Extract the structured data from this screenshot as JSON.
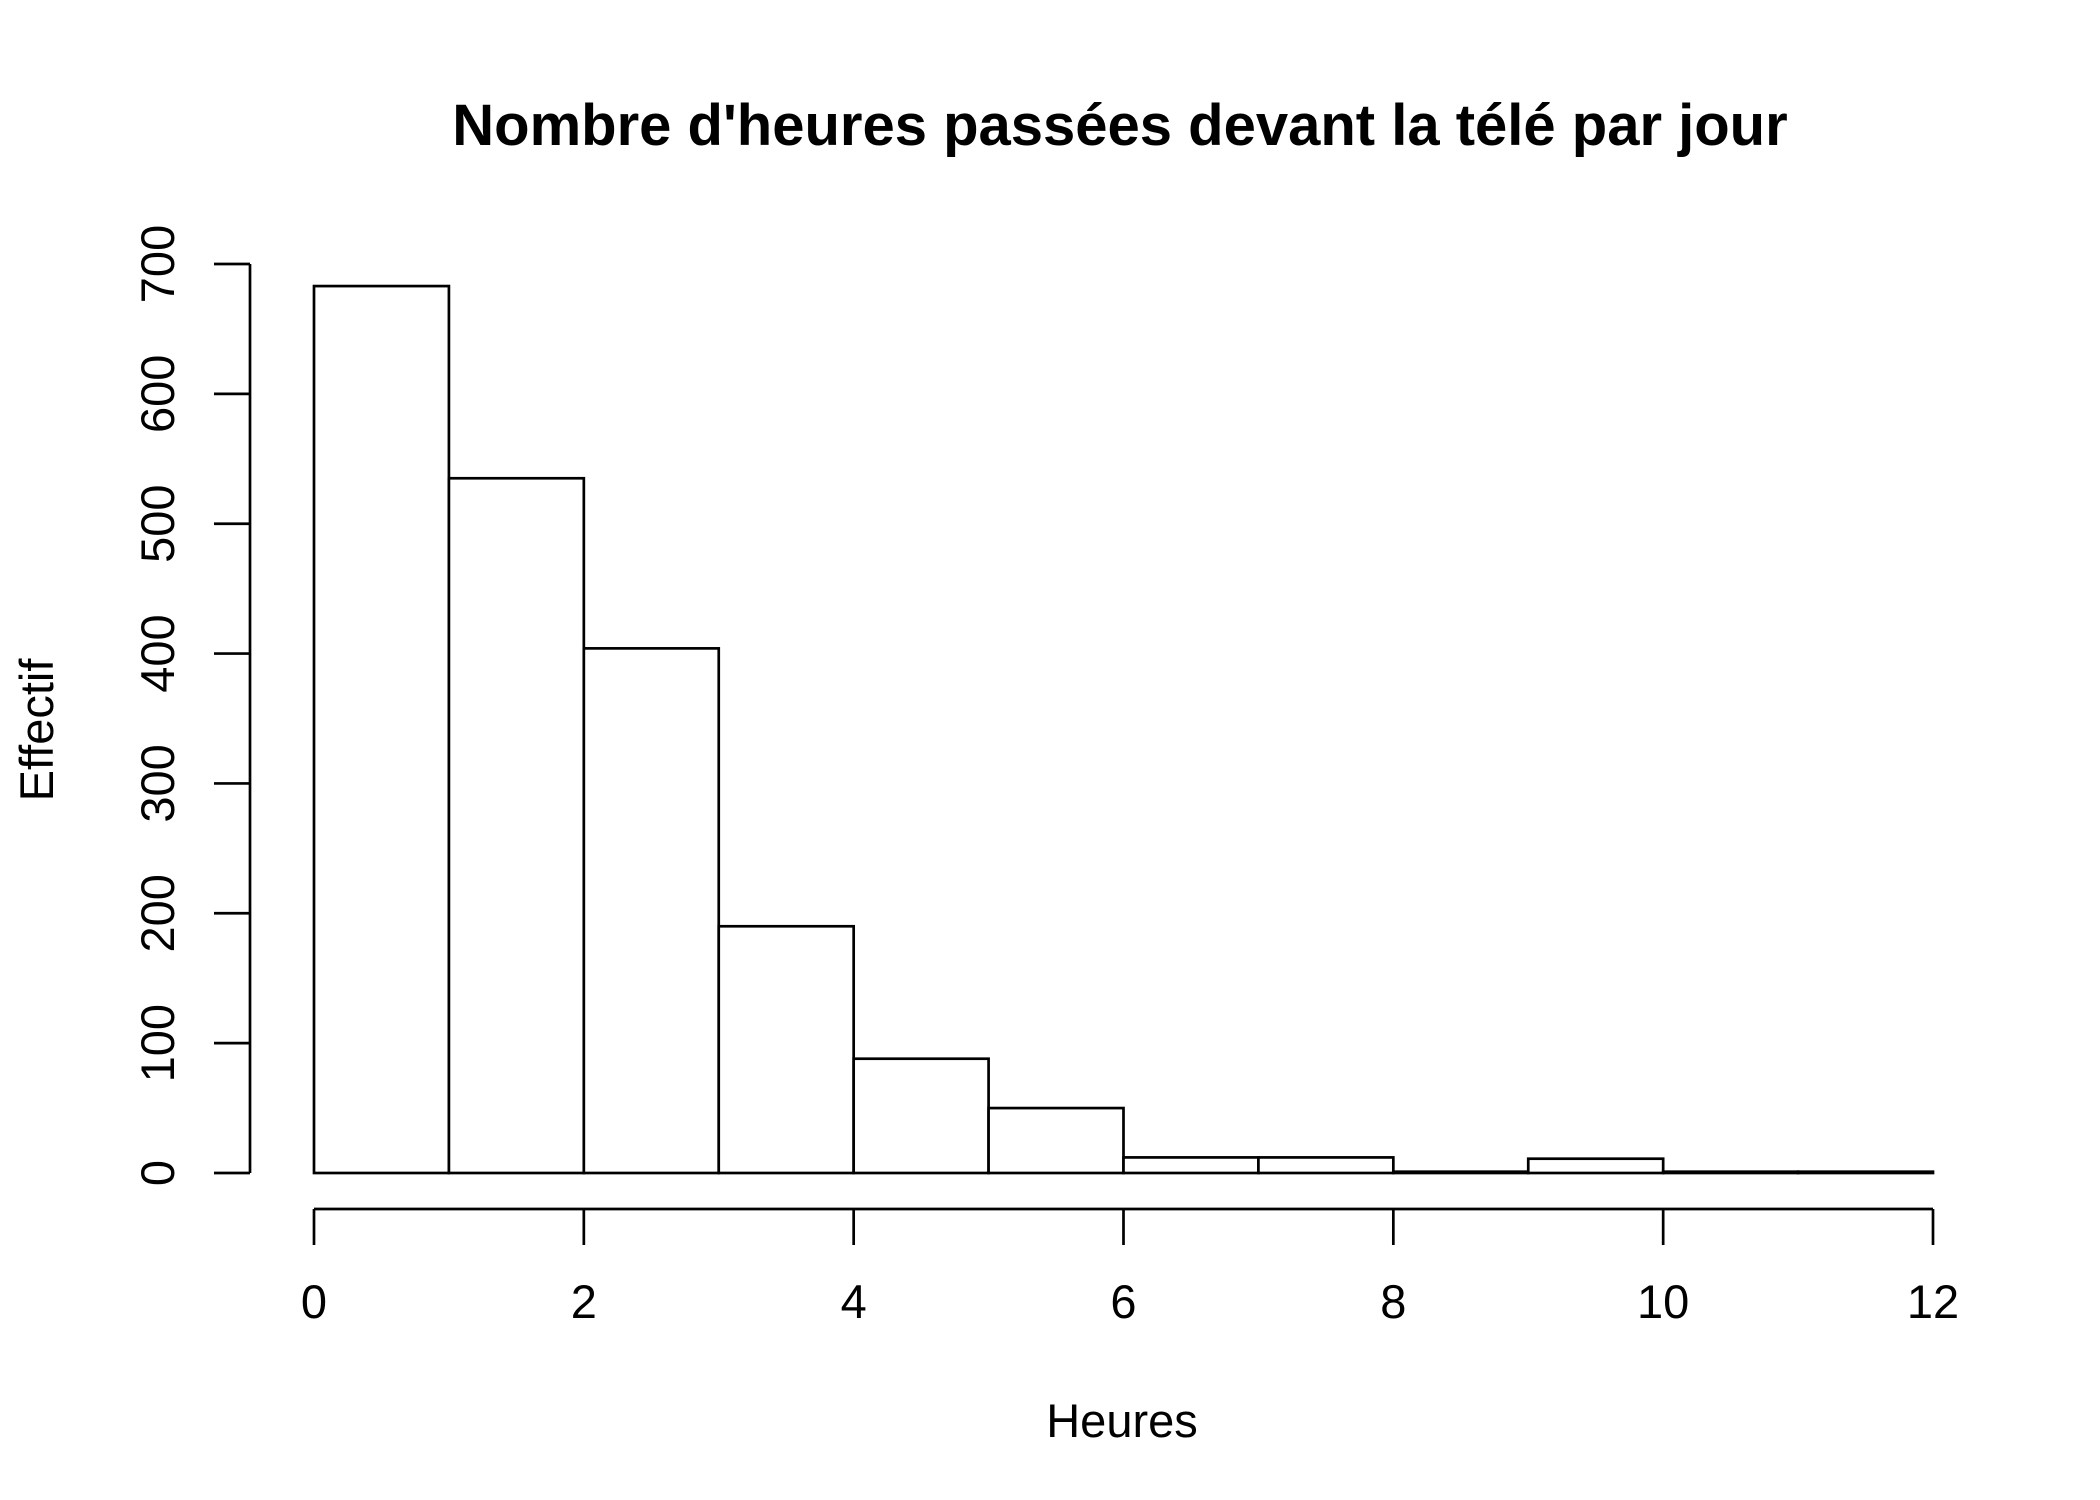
{
  "chart_data": {
    "type": "bar",
    "title": "Nombre d'heures passées devant la télé par jour",
    "xlabel": "Heures",
    "ylabel": "Effectif",
    "bins": [
      {
        "from": 0,
        "to": 1,
        "count": 683
      },
      {
        "from": 1,
        "to": 2,
        "count": 535
      },
      {
        "from": 2,
        "to": 3,
        "count": 404
      },
      {
        "from": 3,
        "to": 4,
        "count": 190
      },
      {
        "from": 4,
        "to": 5,
        "count": 88
      },
      {
        "from": 5,
        "to": 6,
        "count": 50
      },
      {
        "from": 6,
        "to": 7,
        "count": 12
      },
      {
        "from": 7,
        "to": 8,
        "count": 12
      },
      {
        "from": 8,
        "to": 9,
        "count": 1
      },
      {
        "from": 9,
        "to": 10,
        "count": 11
      },
      {
        "from": 10,
        "to": 11,
        "count": 1
      },
      {
        "from": 11,
        "to": 12,
        "count": 1
      }
    ],
    "xticks": [
      "0",
      "2",
      "4",
      "6",
      "8",
      "10",
      "12"
    ],
    "yticks": [
      "0",
      "100",
      "200",
      "300",
      "400",
      "500",
      "600",
      "700"
    ],
    "xlim": [
      0,
      12
    ],
    "ylim": [
      0,
      700
    ],
    "grid": false,
    "colors": {
      "bar_fill": "#ffffff",
      "bar_stroke": "#000000"
    }
  }
}
